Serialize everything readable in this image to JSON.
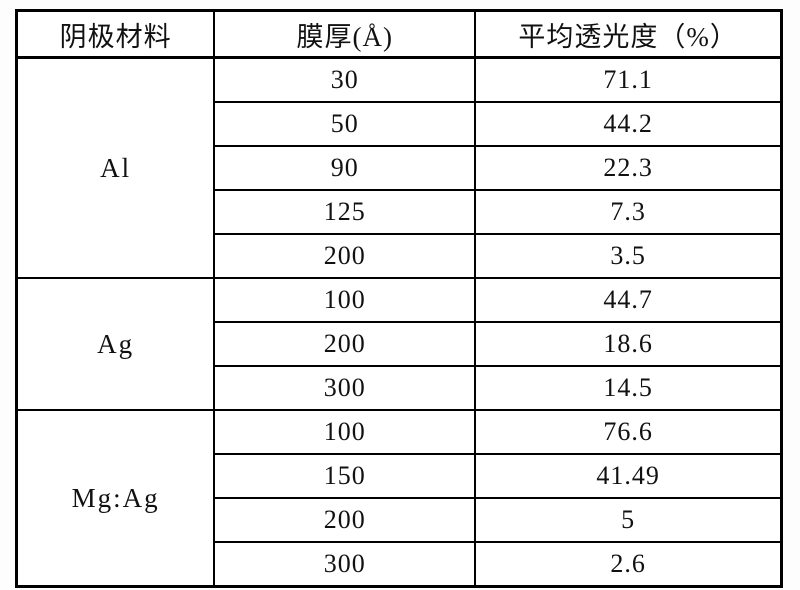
{
  "table": {
    "headers": [
      "阴极材料",
      "膜厚(Å)",
      "平均透光度（%）"
    ],
    "groups": [
      {
        "material": "Al",
        "rows": [
          {
            "thickness": "30",
            "transmittance": "71.1"
          },
          {
            "thickness": "50",
            "transmittance": "44.2"
          },
          {
            "thickness": "90",
            "transmittance": "22.3"
          },
          {
            "thickness": "125",
            "transmittance": "7.3"
          },
          {
            "thickness": "200",
            "transmittance": "3.5"
          }
        ]
      },
      {
        "material": "Ag",
        "rows": [
          {
            "thickness": "100",
            "transmittance": "44.7"
          },
          {
            "thickness": "200",
            "transmittance": "18.6"
          },
          {
            "thickness": "300",
            "transmittance": "14.5"
          }
        ]
      },
      {
        "material": "Mg:Ag",
        "rows": [
          {
            "thickness": "100",
            "transmittance": "76.6"
          },
          {
            "thickness": "150",
            "transmittance": "41.49"
          },
          {
            "thickness": "200",
            "transmittance": "5"
          },
          {
            "thickness": "300",
            "transmittance": "2.6"
          }
        ]
      }
    ]
  }
}
